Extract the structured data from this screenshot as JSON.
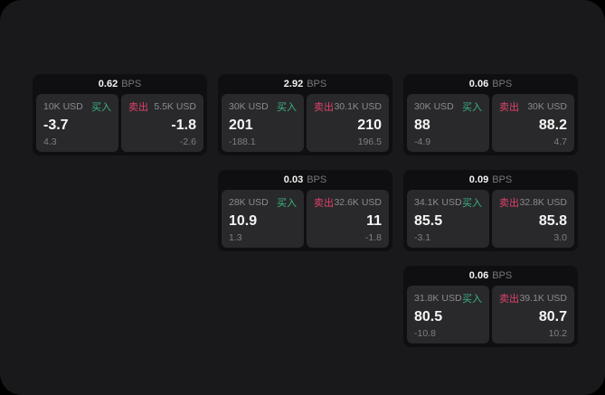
{
  "page": {
    "background": "#000000",
    "panel_background": "#19191b",
    "card_background": "#0f0f11",
    "tile_background": "#29292c"
  },
  "colors": {
    "buy_green": "#3cb47e",
    "sell_red": "#df4168",
    "value_white": "#f5f5f5",
    "muted_gray": "#8b8b90"
  },
  "labels": {
    "bps_unit": "BPS",
    "buy": "买入",
    "sell": "卖出"
  },
  "cards": [
    {
      "bps": "0.62",
      "buy": {
        "amount": "10K USD",
        "value": "-3.7",
        "delta": "4.3"
      },
      "sell": {
        "amount": "5.5K USD",
        "value": "-1.8",
        "delta": "-2.6"
      }
    },
    {
      "bps": "2.92",
      "buy": {
        "amount": "30K USD",
        "value": "201",
        "delta": "-188.1"
      },
      "sell": {
        "amount": "30.1K USD",
        "value": "210",
        "delta": "196.5"
      }
    },
    {
      "bps": "0.06",
      "buy": {
        "amount": "30K USD",
        "value": "88",
        "delta": "-4.9"
      },
      "sell": {
        "amount": "30K USD",
        "value": "88.2",
        "delta": "4.7"
      }
    },
    {
      "bps": "0.03",
      "buy": {
        "amount": "28K USD",
        "value": "10.9",
        "delta": "1.3"
      },
      "sell": {
        "amount": "32.6K USD",
        "value": "11",
        "delta": "-1.8"
      }
    },
    {
      "bps": "0.09",
      "buy": {
        "amount": "34.1K USD",
        "value": "85.5",
        "delta": "-3.1"
      },
      "sell": {
        "amount": "32.8K USD",
        "value": "85.8",
        "delta": "3.0"
      }
    },
    {
      "bps": "0.06",
      "buy": {
        "amount": "31.8K USD",
        "value": "80.5",
        "delta": "-10.8"
      },
      "sell": {
        "amount": "39.1K USD",
        "value": "80.7",
        "delta": "10.2"
      }
    }
  ]
}
